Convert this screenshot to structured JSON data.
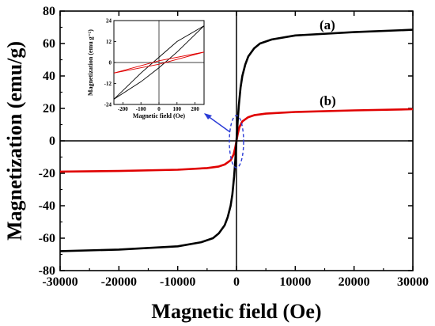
{
  "colors": {
    "series_a": "#000000",
    "series_b": "#e00000",
    "annotation": "#2a3bd6"
  },
  "chart_data": [
    {
      "type": "line",
      "xlabel": "Magnetic field (Oe)",
      "ylabel": "Magnetization (emu/g)",
      "xlim": [
        -30000,
        30000
      ],
      "ylim": [
        -80,
        80
      ],
      "x_ticks": [
        -30000,
        -20000,
        -10000,
        0,
        10000,
        20000,
        30000
      ],
      "y_ticks": [
        -80,
        -60,
        -40,
        -20,
        0,
        20,
        40,
        60,
        80
      ],
      "grid": false,
      "series": [
        {
          "name": "(a)",
          "x": [
            -30000,
            -20000,
            -10000,
            -6000,
            -4000,
            -3000,
            -2000,
            -1500,
            -1000,
            -700,
            -400,
            -200,
            0,
            200,
            400,
            700,
            1000,
            1500,
            2000,
            3000,
            4000,
            6000,
            10000,
            20000,
            30000
          ],
          "y": [
            -68,
            -67,
            -65,
            -62.5,
            -60,
            -57,
            -52,
            -47,
            -40,
            -33,
            -22,
            -12,
            0,
            12,
            22,
            33,
            40,
            47,
            52,
            57,
            60,
            62.5,
            65,
            67,
            68.5
          ]
        },
        {
          "name": "(b)",
          "x": [
            -30000,
            -20000,
            -10000,
            -5000,
            -3000,
            -2000,
            -1000,
            -500,
            -200,
            0,
            200,
            500,
            1000,
            2000,
            3000,
            5000,
            10000,
            20000,
            30000
          ],
          "y": [
            -19,
            -18.6,
            -17.8,
            -16.8,
            -15.8,
            -14.6,
            -12,
            -8.5,
            -4,
            0,
            4,
            8.5,
            12,
            14.6,
            15.8,
            16.8,
            17.8,
            18.8,
            19.5
          ]
        }
      ]
    },
    {
      "type": "line",
      "xlabel": "Magnetic field (Oe)",
      "ylabel": "Magnetization (emu g⁻¹)",
      "xlim": [
        -250,
        250
      ],
      "ylim": [
        -24,
        24
      ],
      "x_ticks": [
        -200,
        -100,
        0,
        100,
        200
      ],
      "y_ticks": [
        -24,
        -12,
        0,
        12,
        24
      ],
      "grid": false,
      "series": [
        {
          "name": "(a)",
          "loop": "upper",
          "x": [
            -250,
            -100,
            0,
            100,
            250
          ],
          "y": [
            -21,
            -6,
            3,
            12,
            21
          ]
        },
        {
          "name": "(a)",
          "loop": "lower",
          "x": [
            -250,
            -100,
            0,
            100,
            250
          ],
          "y": [
            -21,
            -11,
            -3,
            6,
            21
          ]
        },
        {
          "name": "(b)",
          "loop": "upper",
          "x": [
            -250,
            0,
            250
          ],
          "y": [
            -6,
            1,
            6
          ]
        },
        {
          "name": "(b)",
          "loop": "lower",
          "x": [
            -250,
            0,
            250
          ],
          "y": [
            -6,
            -1,
            6
          ]
        }
      ]
    }
  ]
}
